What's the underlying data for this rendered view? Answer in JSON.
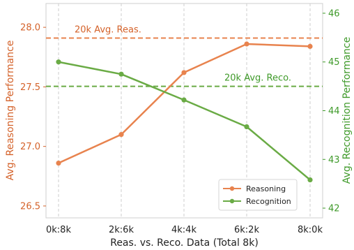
{
  "chart_data": {
    "type": "line",
    "categories": [
      "0k:8k",
      "2k:6k",
      "4k:4k",
      "6k:2k",
      "8k:0k"
    ],
    "xlabel": "Reas. vs. Reco. Data (Total 8k)",
    "ylabel_left": "Avg. Reasoning Performance",
    "ylabel_right": "Avg. Recognition Performance",
    "ylim_left": [
      26.4,
      28.2
    ],
    "ylim_right": [
      41.8,
      46.2
    ],
    "yticks_left": [
      "26.5",
      "27.0",
      "27.5",
      "28.0"
    ],
    "yticks_left_values": [
      26.5,
      27.0,
      27.5,
      28.0
    ],
    "yticks_right": [
      "42",
      "43",
      "44",
      "45",
      "46"
    ],
    "yticks_right_values": [
      42,
      43,
      44,
      45,
      46
    ],
    "grid": "vertical dashed",
    "legend_position": "lower-right",
    "series": [
      {
        "name": "Reasoning",
        "axis": "left",
        "color": "#e8834e",
        "values": [
          26.86,
          27.1,
          27.62,
          27.86,
          27.84
        ]
      },
      {
        "name": "Recognition",
        "axis": "right",
        "color": "#6aab45",
        "values": [
          45.0,
          44.75,
          44.22,
          43.67,
          42.58
        ]
      }
    ],
    "reference_lines": [
      {
        "label": "20k Avg. Reas.",
        "axis": "left",
        "value": 27.91,
        "color": "#e8834e"
      },
      {
        "label": "20k Avg. Reco.",
        "axis": "right",
        "value": 44.5,
        "color": "#6aab45"
      }
    ]
  }
}
